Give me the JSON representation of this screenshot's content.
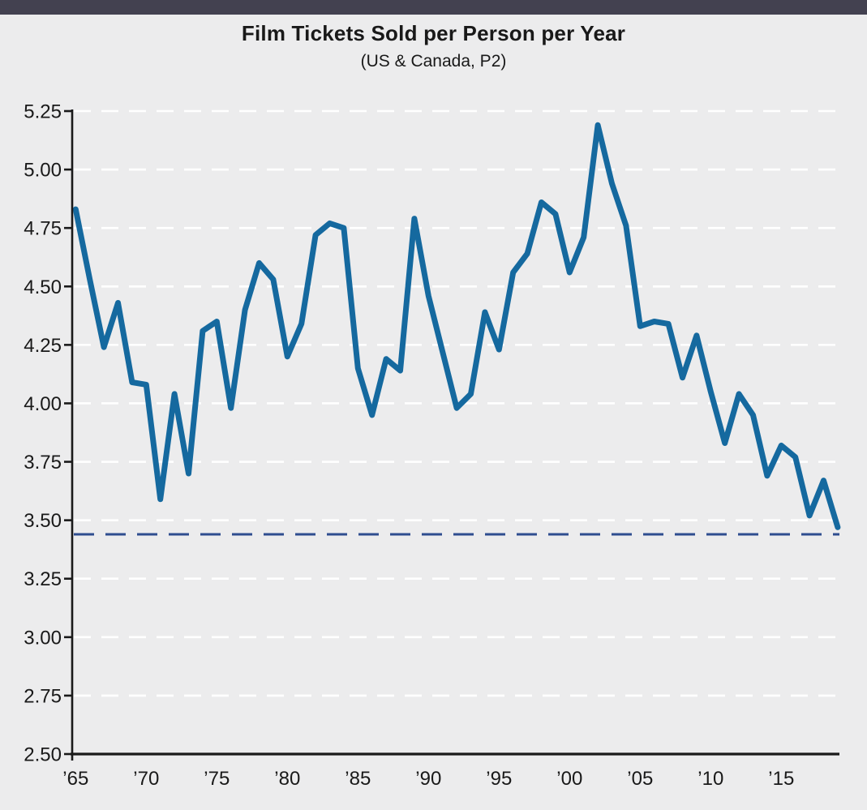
{
  "page": {
    "top_bar_color": "#434150",
    "background_color": "#ececed"
  },
  "header": {
    "title": "Film Tickets Sold per Person per Year",
    "subtitle": "(US & Canada, P2)"
  },
  "chart_data": {
    "type": "line",
    "title": "Film Tickets Sold per Person per Year",
    "subtitle": "(US & Canada, P2)",
    "series": [
      {
        "name": "film-tickets-per-person",
        "x": [
          1965,
          1966,
          1967,
          1968,
          1969,
          1970,
          1971,
          1972,
          1973,
          1974,
          1975,
          1976,
          1977,
          1978,
          1979,
          1980,
          1981,
          1982,
          1983,
          1984,
          1985,
          1986,
          1987,
          1988,
          1989,
          1990,
          1991,
          1992,
          1993,
          1994,
          1995,
          1996,
          1997,
          1998,
          1999,
          2000,
          2001,
          2002,
          2003,
          2004,
          2005,
          2006,
          2007,
          2008,
          2009,
          2010,
          2011,
          2012,
          2013,
          2014,
          2015,
          2016,
          2017,
          2018,
          2019
        ],
        "values": [
          4.83,
          4.53,
          4.24,
          4.43,
          4.09,
          4.08,
          3.59,
          4.04,
          3.7,
          4.31,
          4.35,
          3.98,
          4.4,
          4.6,
          4.53,
          4.2,
          4.34,
          4.72,
          4.77,
          4.75,
          4.15,
          3.95,
          4.19,
          4.14,
          4.79,
          4.46,
          4.22,
          3.98,
          4.04,
          4.39,
          4.23,
          4.56,
          4.64,
          4.86,
          4.81,
          4.56,
          4.71,
          5.19,
          4.94,
          4.76,
          4.33,
          4.35,
          4.34,
          4.11,
          4.29,
          4.05,
          3.83,
          4.04,
          3.95,
          3.69,
          3.82,
          3.77,
          3.52,
          3.67,
          3.47
        ]
      }
    ],
    "xlim": [
      1965,
      2019
    ],
    "ylim": [
      2.5,
      5.25
    ],
    "x_tick_years": [
      1965,
      1970,
      1975,
      1980,
      1985,
      1990,
      1995,
      2000,
      2005,
      2010,
      2015
    ],
    "x_tick_labels": [
      "’65",
      "’70",
      "’75",
      "’80",
      "’85",
      "’90",
      "’95",
      "’00",
      "’05",
      "’10",
      "’15"
    ],
    "y_ticks": [
      2.5,
      2.75,
      3.0,
      3.25,
      3.5,
      3.75,
      4.0,
      4.25,
      4.5,
      4.75,
      5.0,
      5.25
    ],
    "y_tick_labels": [
      "2.50",
      "2.75",
      "3.00",
      "3.25",
      "3.50",
      "3.75",
      "4.00",
      "4.25",
      "4.50",
      "4.75",
      "5.00",
      "5.25"
    ],
    "grid": true,
    "legend": "none",
    "reference_line": {
      "value": 3.44,
      "style": "dashed",
      "color": "#2e4d8f"
    },
    "line_color": "#15699f",
    "gridline_color": "#ffffff",
    "axis_color": "#1a1a1a",
    "xlabel": "",
    "ylabel": ""
  }
}
